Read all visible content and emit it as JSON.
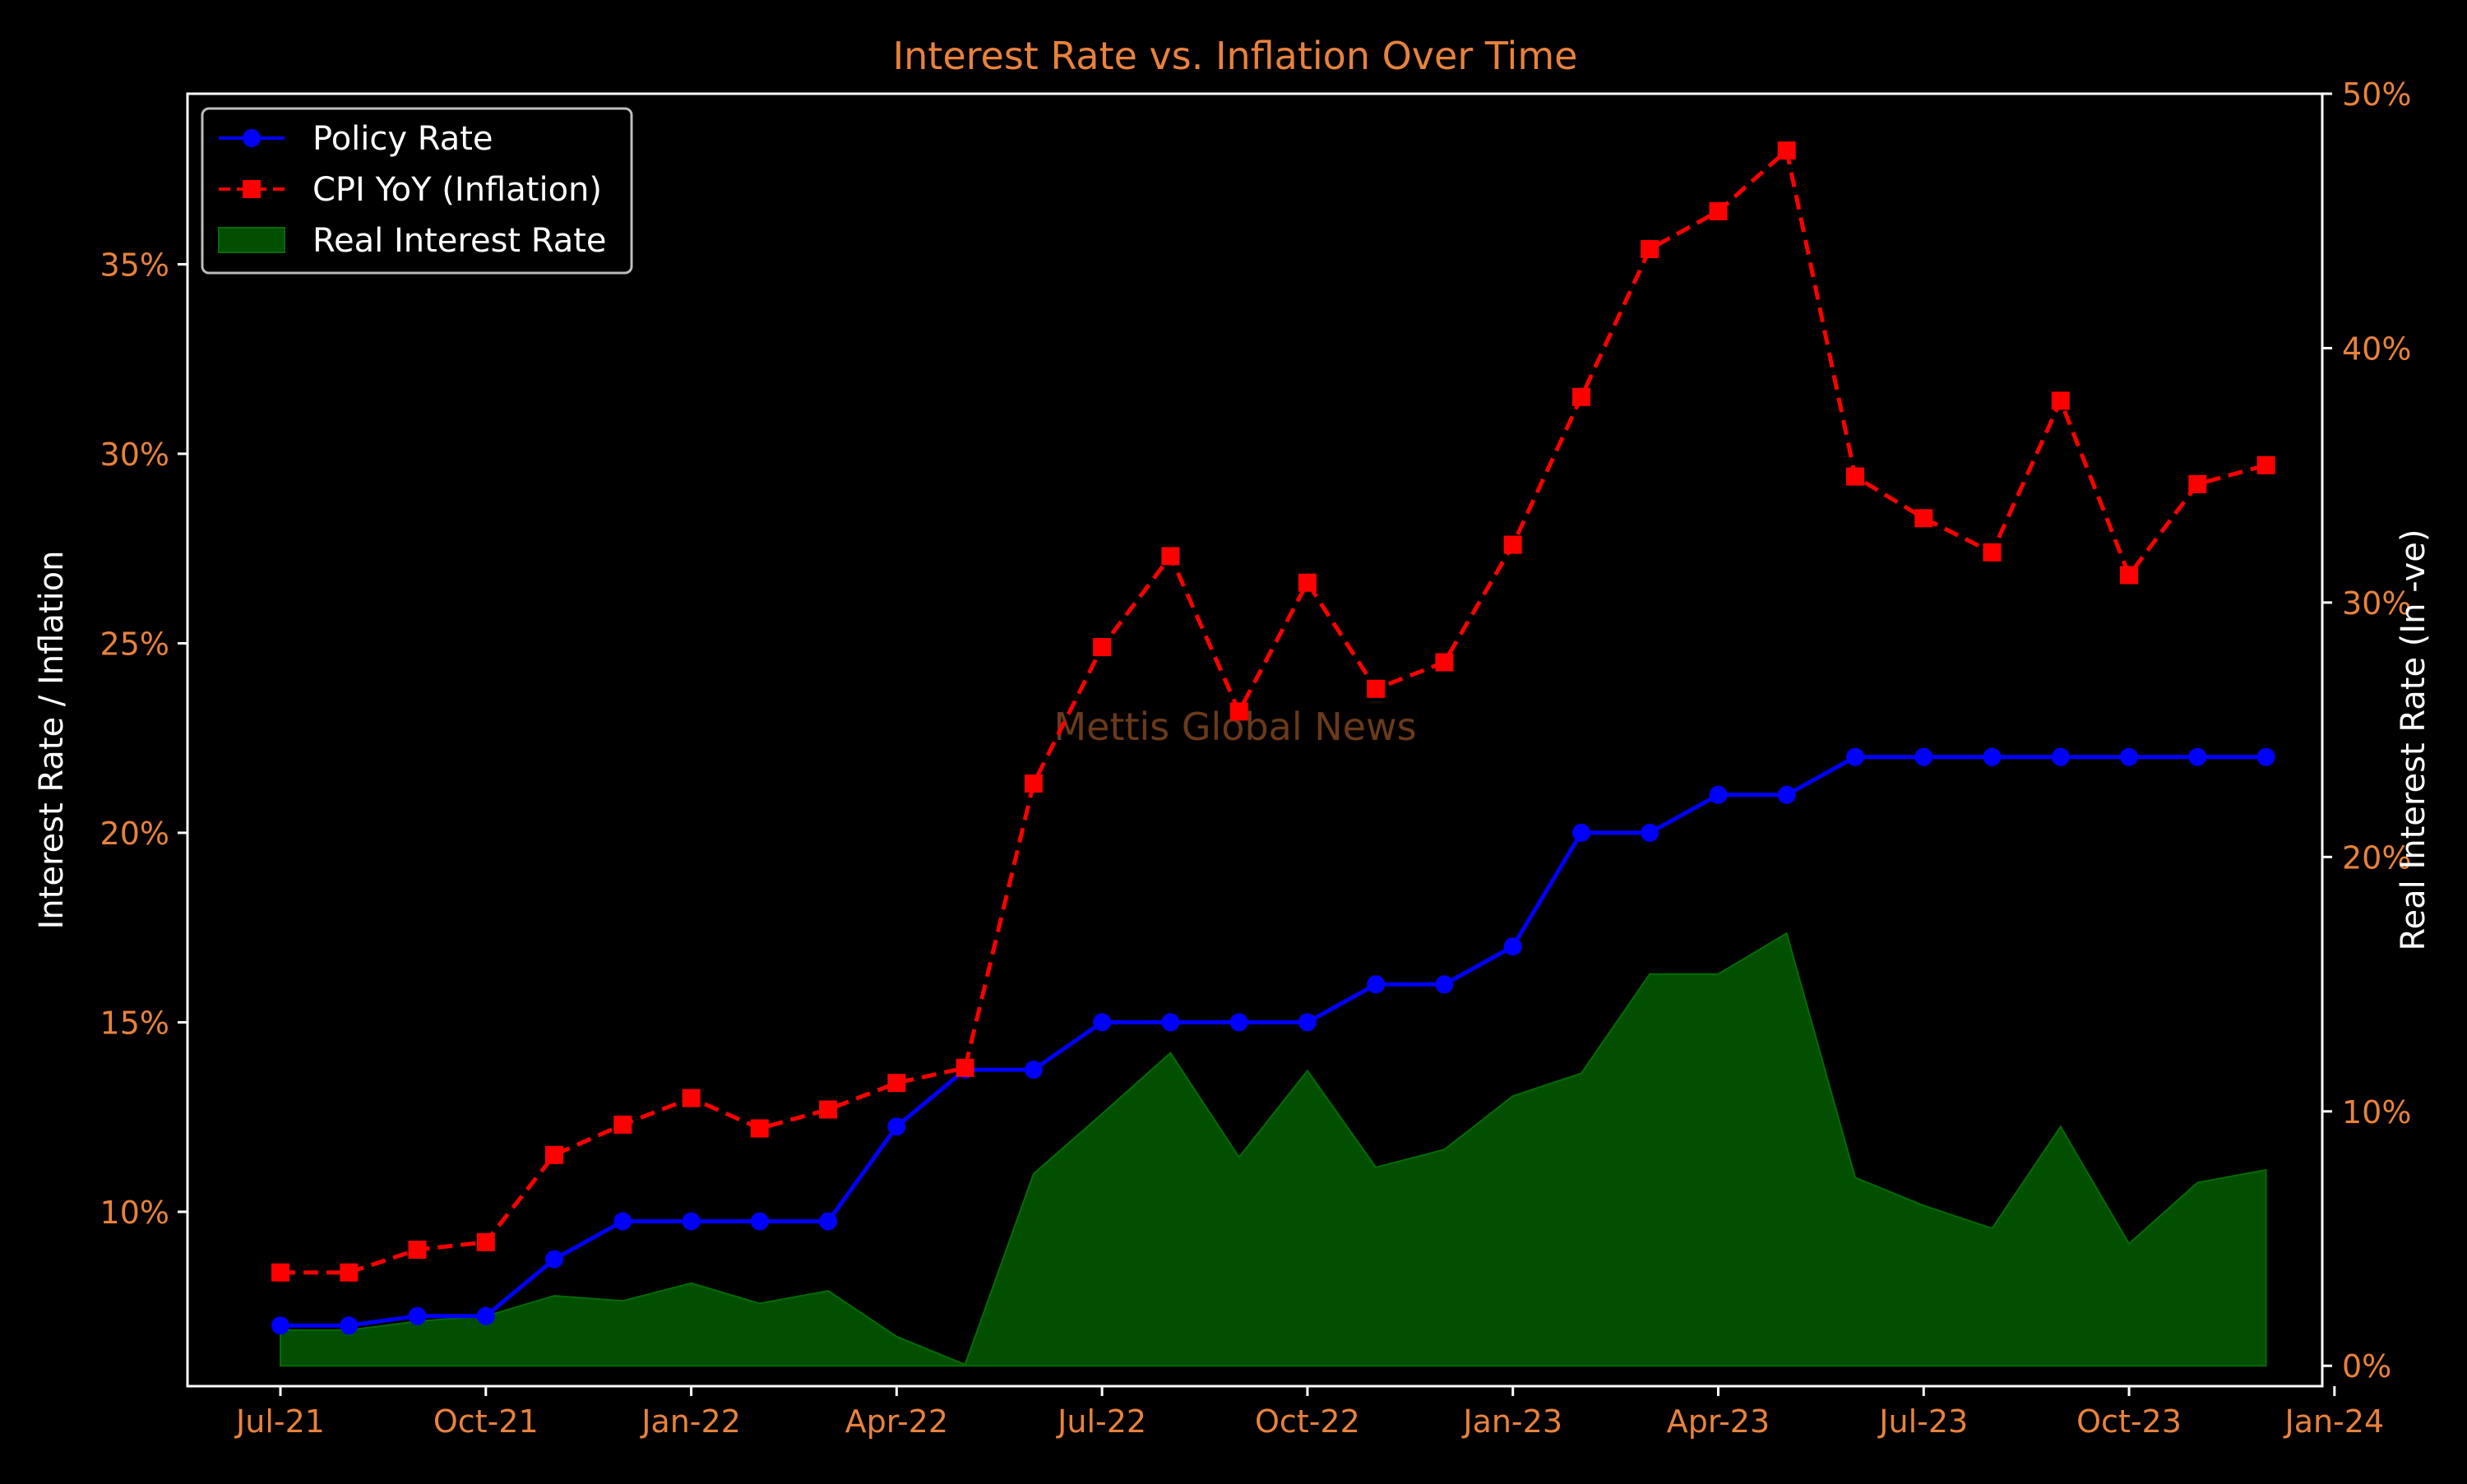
{
  "chart_data": {
    "type": "line",
    "title": "Interest Rate vs. Inflation Over Time",
    "ylabel": "Interest Rate / Inflation",
    "y2label": "Real Interest Rate (In -ve)",
    "watermark": "Mettis Global News",
    "x": [
      "2021-07",
      "2021-08",
      "2021-09",
      "2021-10",
      "2021-11",
      "2021-12",
      "2022-01",
      "2022-02",
      "2022-03",
      "2022-04",
      "2022-05",
      "2022-06",
      "2022-07",
      "2022-08",
      "2022-09",
      "2022-10",
      "2022-11",
      "2022-12",
      "2023-01",
      "2023-02",
      "2023-03",
      "2023-04",
      "2023-05",
      "2023-06",
      "2023-07",
      "2023-08",
      "2023-09",
      "2023-10",
      "2023-11",
      "2023-12"
    ],
    "x_ticks": [
      "Jul-21",
      "Oct-21",
      "Jan-22",
      "Apr-22",
      "Jul-22",
      "Oct-22",
      "Jan-23",
      "Apr-23",
      "Jul-23",
      "Oct-23",
      "Jan-24"
    ],
    "y_ticks": [
      "10%",
      "15%",
      "20%",
      "25%",
      "30%",
      "35%"
    ],
    "y2_ticks": [
      "0%",
      "10%",
      "20%",
      "30%",
      "40%",
      "50%"
    ],
    "ylim": [
      5.4,
      39.5
    ],
    "y2lim": [
      -0.8,
      50
    ],
    "series": [
      {
        "name": "Policy Rate",
        "axis": "left",
        "color": "#0000ff",
        "style": "solid",
        "marker": "circle",
        "values": [
          7.0,
          7.0,
          7.25,
          7.25,
          8.75,
          9.75,
          9.75,
          9.75,
          9.75,
          12.25,
          13.75,
          13.75,
          15.0,
          15.0,
          15.0,
          15.0,
          16.0,
          16.0,
          17.0,
          20.0,
          20.0,
          21.0,
          21.0,
          22.0,
          22.0,
          22.0,
          22.0,
          22.0,
          22.0,
          22.0
        ]
      },
      {
        "name": "CPI YoY (Inflation)",
        "axis": "left",
        "color": "#ff0000",
        "style": "dashed",
        "marker": "square",
        "values": [
          8.4,
          8.4,
          9.0,
          9.2,
          11.5,
          12.3,
          13.0,
          12.2,
          12.7,
          13.4,
          13.8,
          21.3,
          24.9,
          27.3,
          23.2,
          26.6,
          23.8,
          24.5,
          27.6,
          31.5,
          35.4,
          36.4,
          38.0,
          29.4,
          28.3,
          27.4,
          31.4,
          26.8,
          29.2,
          29.7
        ]
      },
      {
        "name": "Real Interest Rate",
        "axis": "right",
        "color": "#024f02",
        "style": "area",
        "values": [
          1.4,
          1.4,
          1.75,
          1.95,
          2.75,
          2.55,
          3.25,
          2.45,
          2.95,
          1.15,
          0.05,
          7.55,
          9.9,
          12.3,
          8.2,
          11.6,
          7.8,
          8.5,
          10.6,
          11.5,
          15.4,
          15.4,
          17.0,
          7.4,
          6.3,
          5.4,
          9.4,
          4.8,
          7.2,
          7.7
        ]
      }
    ],
    "legend_position": "top-left",
    "grid": false
  },
  "colors": {
    "background": "#000000",
    "title": "#e8823c",
    "ticks": "#e8823c",
    "labels": "#ffffff",
    "watermark": "#6b3a1a",
    "axes": "#ffffff"
  }
}
